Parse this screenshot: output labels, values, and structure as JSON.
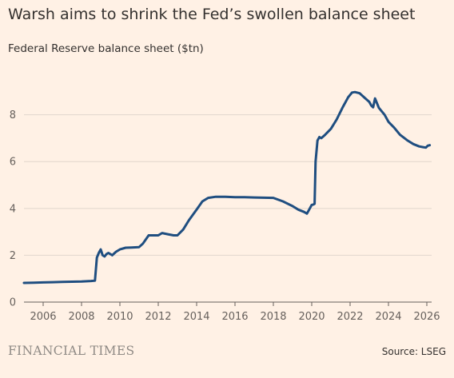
{
  "header": {
    "title": "Warsh aims to shrink the Fed’s swollen balance sheet"
  },
  "footer": {
    "brand": "FINANCIAL TIMES",
    "source": "Source: LSEG"
  },
  "chart_data": {
    "type": "line",
    "title": "Warsh aims to shrink the Fed’s swollen balance sheet",
    "subtitle": "Federal Reserve balance sheet ($tn)",
    "xlabel": "",
    "ylabel": "",
    "xlim": [
      2005.0,
      2026.25
    ],
    "ylim": [
      0,
      9.9
    ],
    "x_ticks": [
      2006,
      2008,
      2010,
      2012,
      2014,
      2016,
      2018,
      2020,
      2022,
      2024,
      2026
    ],
    "y_ticks": [
      0,
      2,
      4,
      6,
      8
    ],
    "grid": "horizontal",
    "line_color": "#1f4e80",
    "series": [
      {
        "x": [
          2005.0,
          2005.5,
          2006.0,
          2006.5,
          2007.0,
          2007.5,
          2008.0,
          2008.5,
          2008.7,
          2008.8,
          2008.9,
          2009.0,
          2009.1,
          2009.2,
          2009.3,
          2009.4,
          2009.5,
          2009.6,
          2009.8,
          2010.0,
          2010.3,
          2010.6,
          2011.0,
          2011.2,
          2011.5,
          2011.8,
          2012.0,
          2012.2,
          2012.5,
          2012.8,
          2013.0,
          2013.3,
          2013.6,
          2014.0,
          2014.3,
          2014.6,
          2015.0,
          2015.5,
          2016.0,
          2016.5,
          2017.0,
          2017.5,
          2018.0,
          2018.5,
          2019.0,
          2019.3,
          2019.6,
          2019.75,
          2019.9,
          2020.0,
          2020.1,
          2020.15,
          2020.2,
          2020.3,
          2020.4,
          2020.5,
          2020.7,
          2021.0,
          2021.3,
          2021.6,
          2021.9,
          2022.1,
          2022.25,
          2022.5,
          2022.8,
          2023.0,
          2023.1,
          2023.2,
          2023.3,
          2023.5,
          2023.8,
          2024.0,
          2024.3,
          2024.6,
          2025.0,
          2025.3,
          2025.6,
          2025.8,
          2025.95,
          2026.05,
          2026.15
        ],
        "y": [
          0.82,
          0.83,
          0.84,
          0.85,
          0.86,
          0.87,
          0.88,
          0.9,
          0.92,
          1.9,
          2.1,
          2.25,
          2.0,
          1.95,
          2.05,
          2.1,
          2.05,
          2.0,
          2.15,
          2.25,
          2.32,
          2.33,
          2.35,
          2.5,
          2.85,
          2.85,
          2.85,
          2.95,
          2.9,
          2.85,
          2.85,
          3.1,
          3.5,
          3.95,
          4.3,
          4.45,
          4.5,
          4.5,
          4.48,
          4.48,
          4.47,
          4.46,
          4.45,
          4.3,
          4.1,
          3.95,
          3.85,
          3.78,
          4.0,
          4.15,
          4.17,
          4.2,
          6.0,
          6.9,
          7.05,
          7.0,
          7.15,
          7.4,
          7.8,
          8.3,
          8.75,
          8.95,
          8.97,
          8.92,
          8.7,
          8.55,
          8.4,
          8.32,
          8.7,
          8.3,
          8.0,
          7.7,
          7.45,
          7.15,
          6.9,
          6.75,
          6.65,
          6.62,
          6.6,
          6.68,
          6.7
        ]
      }
    ]
  }
}
